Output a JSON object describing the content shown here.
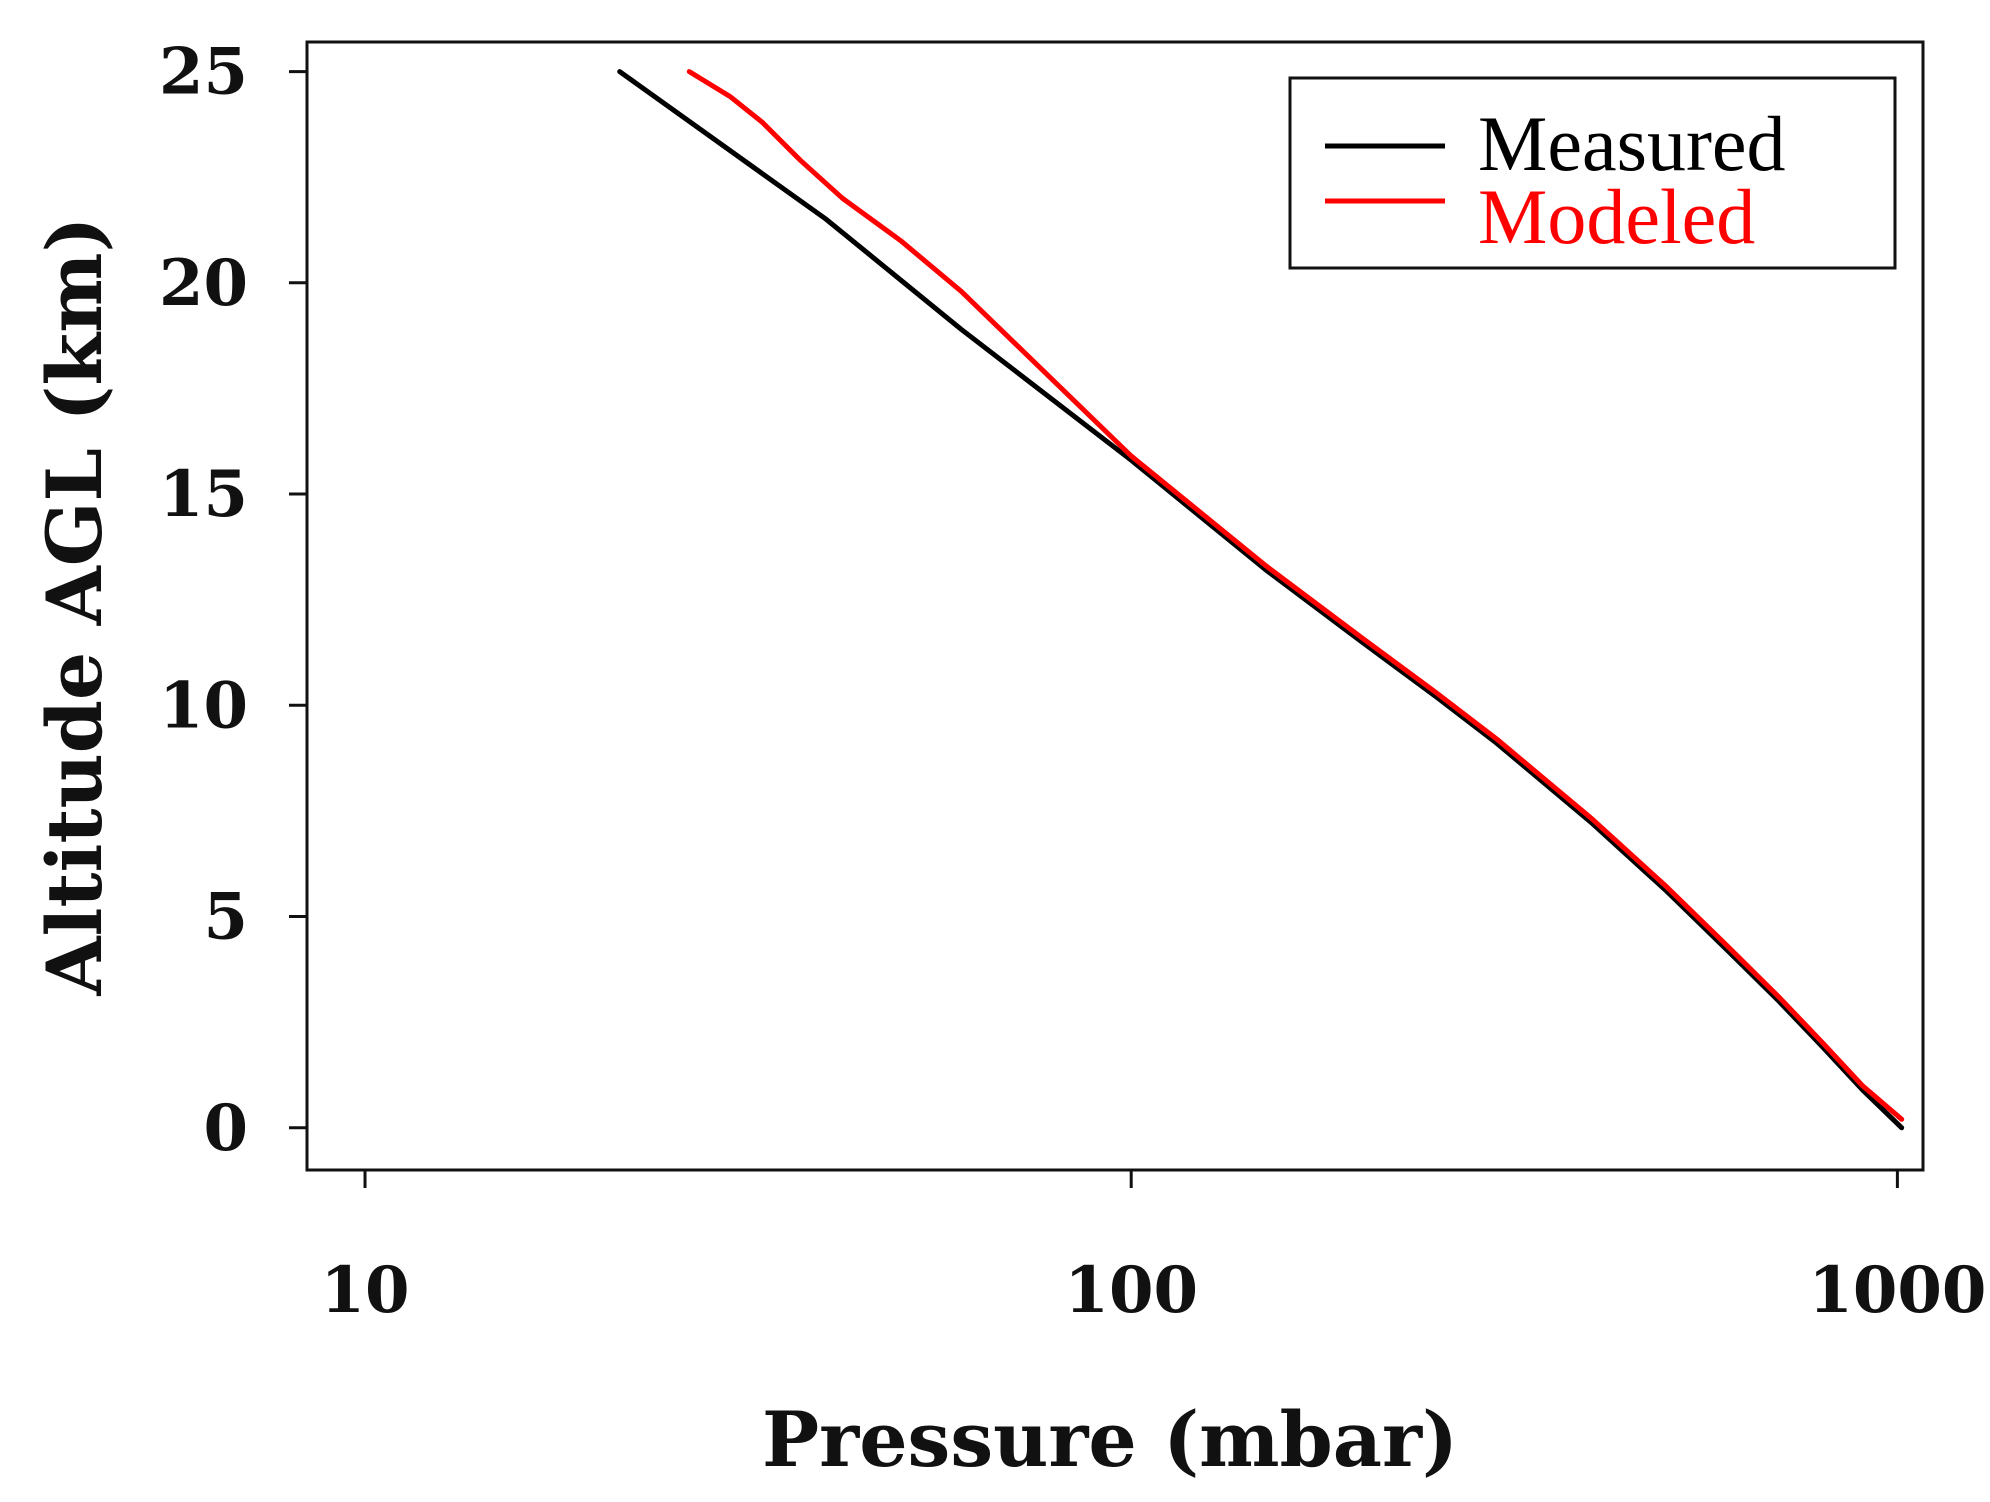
{
  "chart_data": {
    "type": "line",
    "title": "",
    "xlabel": "Pressure (mbar)",
    "ylabel": "Altitude AGL (km)",
    "xscale": "log",
    "xlim": [
      8.4,
      1080
    ],
    "ylim": [
      -1,
      25.7
    ],
    "xticks": [
      10,
      100,
      1000
    ],
    "xtick_labels": [
      "10",
      "100",
      "1000"
    ],
    "yticks": [
      0,
      5,
      10,
      15,
      20,
      25
    ],
    "ytick_labels": [
      "0",
      "5",
      "10",
      "15",
      "20",
      "25"
    ],
    "grid": false,
    "legend_position": "top-right",
    "series": [
      {
        "name": "Measured",
        "color": "#000000",
        "x": [
          21.5,
          40,
          60,
          100,
          150,
          200,
          250,
          300,
          400,
          500,
          600,
          700,
          800,
          900,
          1013
        ],
        "y": [
          25,
          21.5,
          18.9,
          15.8,
          13.2,
          11.5,
          10.2,
          9.1,
          7.2,
          5.6,
          4.2,
          3.0,
          1.9,
          0.9,
          0
        ]
      },
      {
        "name": "Modeled",
        "color": "#ff0000",
        "x": [
          26.5,
          30,
          33,
          37,
          42,
          50,
          60,
          100,
          150,
          200,
          250,
          300,
          400,
          500,
          600,
          700,
          800,
          900,
          1013
        ],
        "y": [
          25,
          24.4,
          23.8,
          22.9,
          22.0,
          21.0,
          19.8,
          15.9,
          13.3,
          11.6,
          10.3,
          9.2,
          7.3,
          5.7,
          4.3,
          3.1,
          2.0,
          1.0,
          0.2
        ]
      }
    ]
  }
}
